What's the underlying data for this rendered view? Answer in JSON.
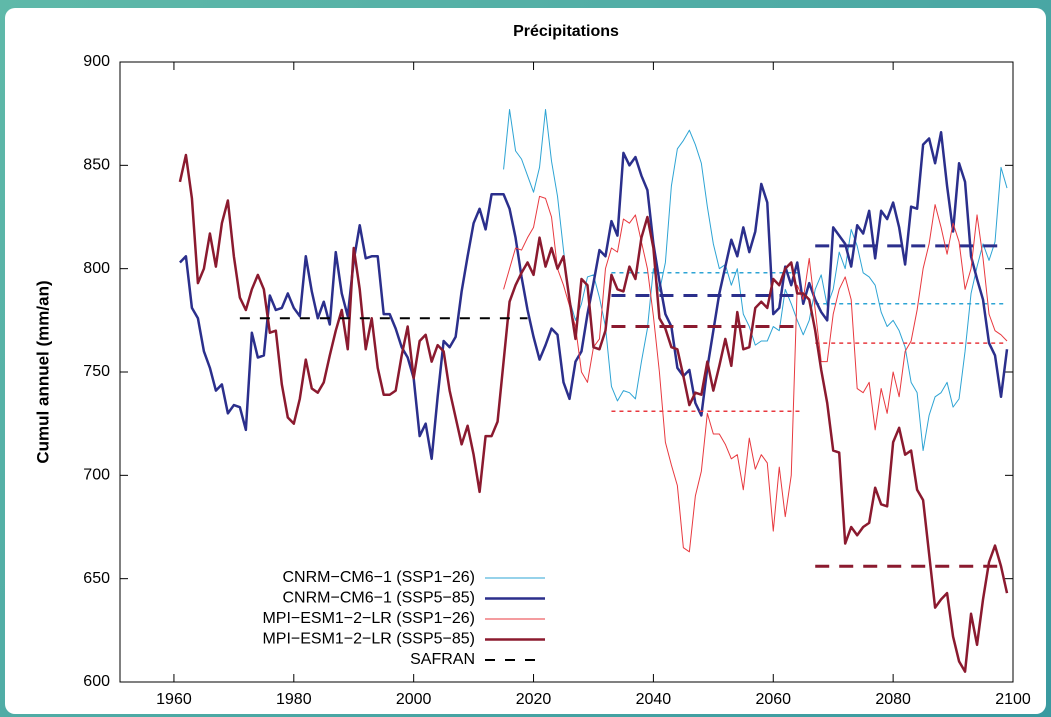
{
  "chart_data": {
    "type": "line",
    "title": "Précipitations",
    "y_label": "Cumul annuel (mm/an)",
    "xlim": [
      1951,
      2100
    ],
    "xticks": [
      1960,
      1980,
      2000,
      2020,
      2040,
      2060,
      2080,
      2100
    ],
    "ylim": [
      600,
      900
    ],
    "yticks": [
      600,
      650,
      700,
      750,
      800,
      850,
      900
    ],
    "legend": "lower left",
    "x": [
      1961,
      1962,
      1963,
      1964,
      1965,
      1966,
      1967,
      1968,
      1969,
      1970,
      1971,
      1972,
      1973,
      1974,
      1975,
      1976,
      1977,
      1978,
      1979,
      1980,
      1981,
      1982,
      1983,
      1984,
      1985,
      1986,
      1987,
      1988,
      1989,
      1990,
      1991,
      1992,
      1993,
      1994,
      1995,
      1996,
      1997,
      1998,
      1999,
      2000,
      2001,
      2002,
      2003,
      2004,
      2005,
      2006,
      2007,
      2008,
      2009,
      2010,
      2011,
      2012,
      2013,
      2014,
      2015,
      2016,
      2017,
      2018,
      2019,
      2020,
      2021,
      2022,
      2023,
      2024,
      2025,
      2026,
      2027,
      2028,
      2029,
      2030,
      2031,
      2032,
      2033,
      2034,
      2035,
      2036,
      2037,
      2038,
      2039,
      2040,
      2041,
      2042,
      2043,
      2044,
      2045,
      2046,
      2047,
      2048,
      2049,
      2050,
      2051,
      2052,
      2053,
      2054,
      2055,
      2056,
      2057,
      2058,
      2059,
      2060,
      2061,
      2062,
      2063,
      2064,
      2065,
      2066,
      2067,
      2068,
      2069,
      2070,
      2071,
      2072,
      2073,
      2074,
      2075,
      2076,
      2077,
      2078,
      2079,
      2080,
      2081,
      2082,
      2083,
      2084,
      2085,
      2086,
      2087,
      2088,
      2089,
      2090,
      2091,
      2092,
      2093,
      2094,
      2095,
      2096,
      2097,
      2098,
      2099
    ],
    "series": [
      {
        "name": "CNRM−CM6−1 (SSP1−26)",
        "color": "#2ea4d4",
        "width": 1,
        "values": [
          null,
          null,
          null,
          null,
          null,
          null,
          null,
          null,
          null,
          null,
          null,
          null,
          null,
          null,
          null,
          null,
          null,
          null,
          null,
          null,
          null,
          null,
          null,
          null,
          null,
          null,
          null,
          null,
          null,
          null,
          null,
          null,
          null,
          null,
          null,
          null,
          null,
          null,
          null,
          null,
          null,
          null,
          null,
          null,
          null,
          null,
          null,
          null,
          null,
          null,
          null,
          null,
          null,
          null,
          848,
          877,
          857,
          853,
          845,
          837,
          849,
          877,
          852,
          835,
          809,
          785,
          775,
          783,
          796,
          797,
          786,
          772,
          743,
          736,
          741,
          740,
          737,
          755,
          771,
          800,
          789,
          803,
          840,
          858,
          862,
          867,
          860,
          851,
          830,
          812,
          800,
          802,
          792,
          800,
          778,
          772,
          763,
          765,
          765,
          772,
          770,
          790,
          783,
          775,
          768,
          775,
          790,
          797,
          782,
          790,
          808,
          800,
          819,
          811,
          798,
          796,
          792,
          779,
          772,
          775,
          770,
          762,
          745,
          740,
          712,
          729,
          738,
          740,
          745,
          733,
          737,
          760,
          788,
          801,
          812,
          804,
          813,
          849,
          839
        ],
        "period_means": [
          {
            "x": [
              2033,
              2065
            ],
            "value": 798
          },
          {
            "x": [
              2067,
              2099
            ],
            "value": 783
          }
        ]
      },
      {
        "name": "CNRM−CM6−1 (SSP5−85)",
        "color": "#2b2f8c",
        "width": 2.5,
        "values": [
          803,
          806,
          781,
          776,
          760,
          752,
          741,
          744,
          730,
          734,
          733,
          722,
          769,
          757,
          758,
          787,
          780,
          781,
          788,
          781,
          777,
          806,
          789,
          776,
          784,
          773,
          808,
          788,
          777,
          804,
          821,
          805,
          806,
          806,
          778,
          778,
          771,
          762,
          757,
          747,
          719,
          725,
          708,
          738,
          765,
          762,
          767,
          789,
          806,
          822,
          829,
          819,
          836,
          836,
          836,
          829,
          815,
          796,
          780,
          767,
          756,
          763,
          771,
          768,
          745,
          737,
          755,
          760,
          778,
          793,
          809,
          806,
          823,
          816,
          856,
          850,
          854,
          845,
          838,
          812,
          794,
          778,
          772,
          752,
          748,
          751,
          735,
          729,
          752,
          770,
          788,
          801,
          814,
          806,
          820,
          808,
          818,
          841,
          832,
          778,
          781,
          801,
          792,
          803,
          783,
          793,
          785,
          779,
          775,
          820,
          816,
          812,
          801,
          821,
          817,
          828,
          805,
          828,
          824,
          832,
          820,
          802,
          830,
          829,
          860,
          863,
          851,
          866,
          840,
          818,
          851,
          842,
          806,
          795,
          785,
          764,
          758,
          738,
          761
        ],
        "period_means": [
          {
            "x": [
              2033,
              2065
            ],
            "value": 787
          },
          {
            "x": [
              2067,
              2099
            ],
            "value": 811
          }
        ]
      },
      {
        "name": "MPI−ESM1−2−LR (SSP1−26)",
        "color": "#e8393f",
        "width": 1,
        "values": [
          null,
          null,
          null,
          null,
          null,
          null,
          null,
          null,
          null,
          null,
          null,
          null,
          null,
          null,
          null,
          null,
          null,
          null,
          null,
          null,
          null,
          null,
          null,
          null,
          null,
          null,
          null,
          null,
          null,
          null,
          null,
          null,
          null,
          null,
          null,
          null,
          null,
          null,
          null,
          null,
          null,
          null,
          null,
          null,
          null,
          null,
          null,
          null,
          null,
          null,
          null,
          null,
          null,
          null,
          790,
          800,
          810,
          809,
          815,
          820,
          835,
          834,
          825,
          800,
          792,
          782,
          772,
          750,
          745,
          762,
          766,
          800,
          810,
          808,
          824,
          822,
          826,
          813,
          800,
          777,
          750,
          716,
          705,
          695,
          665,
          663,
          690,
          702,
          730,
          720,
          720,
          715,
          708,
          710,
          693,
          718,
          703,
          710,
          706,
          673,
          704,
          680,
          700,
          792,
          785,
          805,
          780,
          755,
          755,
          778,
          790,
          796,
          785,
          742,
          740,
          745,
          722,
          742,
          730,
          750,
          738,
          760,
          765,
          780,
          800,
          812,
          831,
          820,
          807,
          822,
          813,
          790,
          800,
          826,
          805,
          778,
          770,
          768,
          765
        ],
        "period_means": [
          {
            "x": [
              2033,
              2065
            ],
            "value": 731
          },
          {
            "x": [
              2067,
              2099
            ],
            "value": 764
          }
        ]
      },
      {
        "name": "MPI−ESM1−2−LR (SSP5−85)",
        "color": "#8b1a2f",
        "width": 2.5,
        "values": [
          842,
          855,
          834,
          793,
          800,
          817,
          801,
          822,
          833,
          806,
          786,
          780,
          790,
          797,
          790,
          769,
          770,
          744,
          728,
          725,
          737,
          756,
          742,
          740,
          745,
          758,
          770,
          780,
          761,
          810,
          790,
          761,
          776,
          752,
          739,
          739,
          741,
          758,
          772,
          747,
          765,
          768,
          755,
          763,
          760,
          741,
          728,
          715,
          724,
          710,
          692,
          719,
          719,
          726,
          755,
          784,
          792,
          798,
          803,
          797,
          815,
          801,
          810,
          800,
          806,
          785,
          766,
          795,
          792,
          762,
          761,
          770,
          797,
          790,
          789,
          801,
          795,
          815,
          825,
          810,
          776,
          771,
          762,
          761,
          748,
          734,
          740,
          739,
          755,
          741,
          753,
          766,
          753,
          779,
          761,
          762,
          781,
          784,
          781,
          795,
          792,
          800,
          803,
          788,
          788,
          785,
          770,
          751,
          735,
          712,
          711,
          667,
          675,
          671,
          675,
          677,
          694,
          686,
          685,
          716,
          723,
          710,
          712,
          693,
          688,
          662,
          636,
          640,
          643,
          622,
          610,
          605,
          633,
          618,
          640,
          658,
          666,
          656,
          643
        ],
        "period_means": [
          {
            "x": [
              2033,
              2065
            ],
            "value": 772
          },
          {
            "x": [
              2067,
              2099
            ],
            "value": 656
          }
        ]
      },
      {
        "name": "SAFRAN",
        "color": "#000000",
        "width": 2,
        "dashed": true,
        "x": [
          1971,
          2019
        ],
        "values": [
          776,
          776
        ]
      }
    ]
  }
}
